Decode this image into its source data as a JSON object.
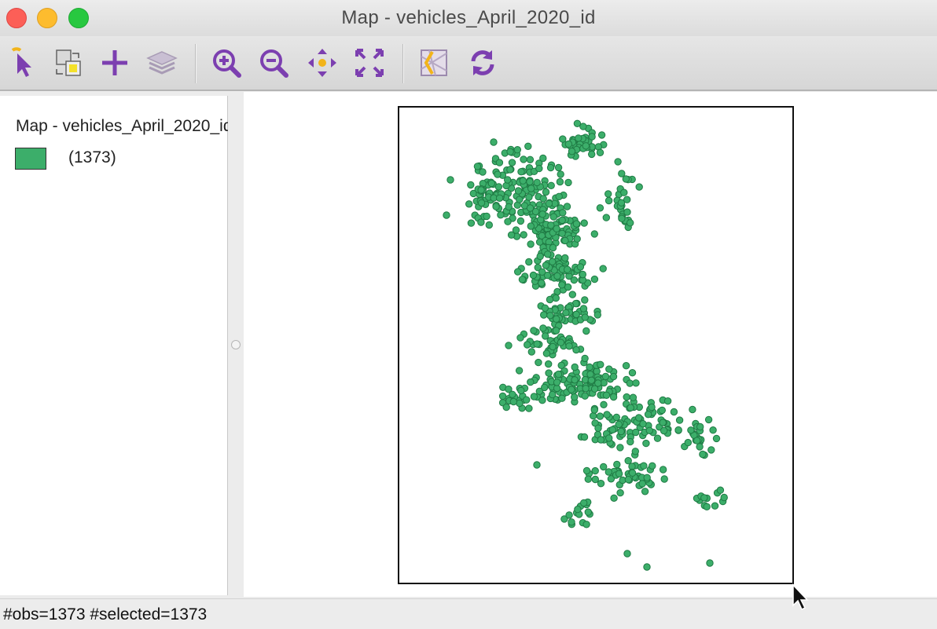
{
  "window": {
    "title": "Map - vehicles_April_2020_id"
  },
  "toolbar": {
    "buttons": [
      {
        "name": "select-tool-icon"
      },
      {
        "name": "selection-shape-icon"
      },
      {
        "name": "add-layer-icon"
      },
      {
        "name": "layers-icon"
      },
      {
        "name": "zoom-in-icon"
      },
      {
        "name": "zoom-out-icon"
      },
      {
        "name": "pan-icon"
      },
      {
        "name": "full-extent-icon"
      },
      {
        "name": "basemap-icon"
      },
      {
        "name": "refresh-icon"
      }
    ]
  },
  "legend": {
    "title": "Map - vehicles_April_2020_id",
    "category_count": "(1373)",
    "swatch_color": "#3cae6a"
  },
  "map": {
    "point_fill": "#3cae6a",
    "point_stroke": "#1f7a44"
  },
  "status": {
    "text": "#obs=1373 #selected=1373"
  }
}
